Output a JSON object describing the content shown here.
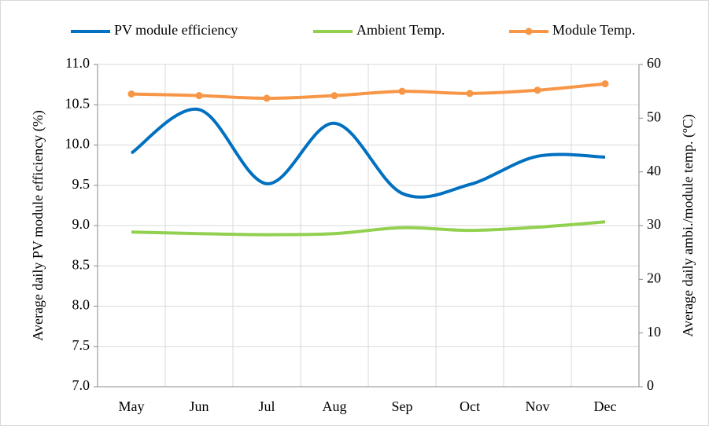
{
  "chart_data": {
    "type": "line",
    "categories": [
      "May",
      "Jun",
      "Jul",
      "Aug",
      "Sep",
      "Oct",
      "Nov",
      "Dec"
    ],
    "series": [
      {
        "name": "PV module efficiency",
        "color": "#0070c0",
        "values": [
          9.9,
          10.44,
          9.52,
          10.27,
          9.4,
          9.51,
          9.86,
          9.85
        ]
      },
      {
        "name": "Ambient Temp.",
        "color": "#92d050",
        "axis": "y2",
        "values": [
          28.8,
          28.5,
          28.3,
          28.5,
          29.6,
          29.1,
          29.7,
          30.7
        ]
      },
      {
        "name": "Module Temp.",
        "color": "#f79646",
        "axis": "y2",
        "marker": true,
        "values": [
          54.5,
          54.2,
          53.7,
          54.2,
          55.0,
          54.6,
          55.2,
          56.4
        ]
      }
    ],
    "ylabel": "Average daily PV module efficiency (%)",
    "y2label": "Average daily ambi./module temp. (ºC)",
    "ylim": [
      7.0,
      11.0
    ],
    "yticks": [
      {
        "value": 7.0,
        "label": "7.0"
      },
      {
        "value": 7.5,
        "label": "7.5"
      },
      {
        "value": 8.0,
        "label": "8.0"
      },
      {
        "value": 8.5,
        "label": "8.5"
      },
      {
        "value": 9.0,
        "label": "9.0"
      },
      {
        "value": 9.5,
        "label": "9.5"
      },
      {
        "value": 10.0,
        "label": "10.0"
      },
      {
        "value": 10.5,
        "label": "10.5"
      },
      {
        "value": 11.0,
        "label": "11.0"
      }
    ],
    "y2lim": [
      0,
      60
    ],
    "y2ticks": [
      0,
      10,
      20,
      30,
      40,
      50,
      60
    ],
    "grid": true,
    "smooth": true,
    "legend": "top"
  }
}
